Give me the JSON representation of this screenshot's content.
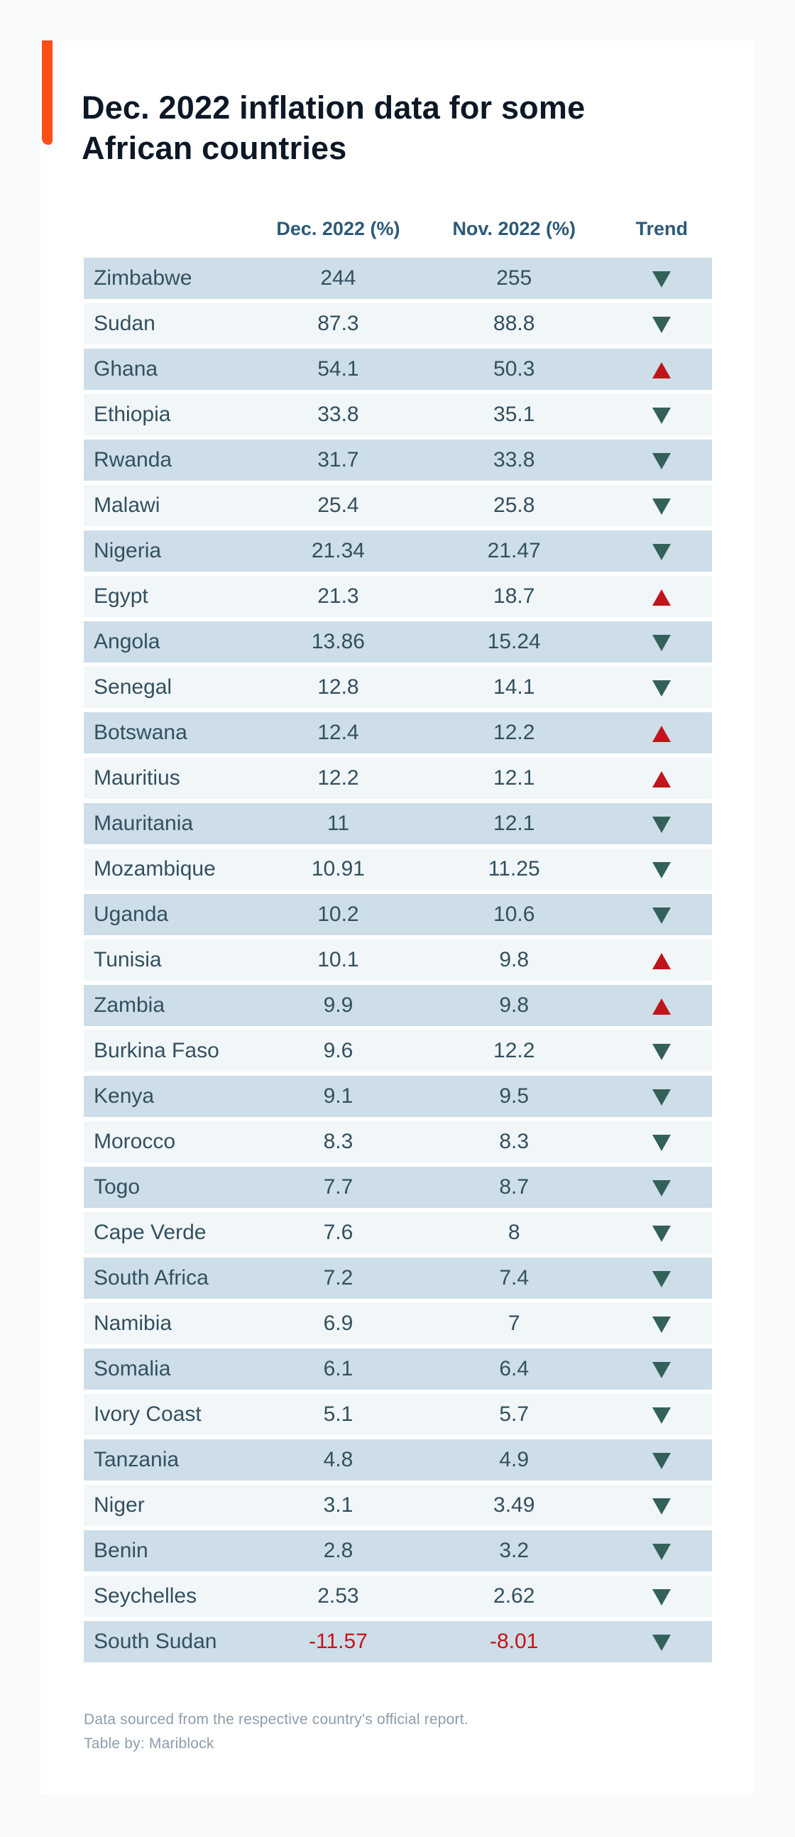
{
  "header": {
    "title_lines": [
      "Dec. 2022 inflation data for some",
      "African countries"
    ]
  },
  "chart_data": {
    "type": "table",
    "title": "Dec. 2022 inflation data for some African countries",
    "columns": [
      "",
      "Dec. 2022 (%)",
      "Nov. 2022 (%)",
      "Trend"
    ],
    "rows": [
      {
        "country": "Zimbabwe",
        "dec": "244",
        "nov": "255",
        "trend": "down"
      },
      {
        "country": "Sudan",
        "dec": "87.3",
        "nov": "88.8",
        "trend": "down"
      },
      {
        "country": "Ghana",
        "dec": "54.1",
        "nov": "50.3",
        "trend": "up"
      },
      {
        "country": "Ethiopia",
        "dec": "33.8",
        "nov": "35.1",
        "trend": "down"
      },
      {
        "country": "Rwanda",
        "dec": "31.7",
        "nov": "33.8",
        "trend": "down"
      },
      {
        "country": "Malawi",
        "dec": "25.4",
        "nov": "25.8",
        "trend": "down"
      },
      {
        "country": "Nigeria",
        "dec": "21.34",
        "nov": "21.47",
        "trend": "down"
      },
      {
        "country": "Egypt",
        "dec": "21.3",
        "nov": "18.7",
        "trend": "up"
      },
      {
        "country": "Angola",
        "dec": "13.86",
        "nov": "15.24",
        "trend": "down"
      },
      {
        "country": "Senegal",
        "dec": "12.8",
        "nov": "14.1",
        "trend": "down"
      },
      {
        "country": "Botswana",
        "dec": "12.4",
        "nov": "12.2",
        "trend": "up"
      },
      {
        "country": "Mauritius",
        "dec": "12.2",
        "nov": "12.1",
        "trend": "up"
      },
      {
        "country": "Mauritania",
        "dec": "11",
        "nov": "12.1",
        "trend": "down"
      },
      {
        "country": "Mozambique",
        "dec": "10.91",
        "nov": "11.25",
        "trend": "down"
      },
      {
        "country": "Uganda",
        "dec": "10.2",
        "nov": "10.6",
        "trend": "down"
      },
      {
        "country": "Tunisia",
        "dec": "10.1",
        "nov": "9.8",
        "trend": "up"
      },
      {
        "country": "Zambia",
        "dec": "9.9",
        "nov": "9.8",
        "trend": "up"
      },
      {
        "country": "Burkina Faso",
        "dec": "9.6",
        "nov": "12.2",
        "trend": "down"
      },
      {
        "country": "Kenya",
        "dec": "9.1",
        "nov": "9.5",
        "trend": "down"
      },
      {
        "country": "Morocco",
        "dec": "8.3",
        "nov": "8.3",
        "trend": "down"
      },
      {
        "country": "Togo",
        "dec": "7.7",
        "nov": "8.7",
        "trend": "down"
      },
      {
        "country": "Cape Verde",
        "dec": "7.6",
        "nov": "8",
        "trend": "down"
      },
      {
        "country": "South Africa",
        "dec": "7.2",
        "nov": "7.4",
        "trend": "down"
      },
      {
        "country": "Namibia",
        "dec": "6.9",
        "nov": "7",
        "trend": "down"
      },
      {
        "country": "Somalia",
        "dec": "6.1",
        "nov": "6.4",
        "trend": "down"
      },
      {
        "country": "Ivory Coast",
        "dec": "5.1",
        "nov": "5.7",
        "trend": "down"
      },
      {
        "country": "Tanzania",
        "dec": "4.8",
        "nov": "4.9",
        "trend": "down"
      },
      {
        "country": "Niger",
        "dec": "3.1",
        "nov": "3.49",
        "trend": "down"
      },
      {
        "country": "Benin",
        "dec": "2.8",
        "nov": "3.2",
        "trend": "down"
      },
      {
        "country": "Seychelles",
        "dec": "2.53",
        "nov": "2.62",
        "trend": "down"
      },
      {
        "country": "South Sudan",
        "dec": "-11.57",
        "nov": "-8.01",
        "trend": "down"
      }
    ],
    "legend_position": "none",
    "colors": {
      "accent_orange": "#fa4f17",
      "title_text": "#0c1826",
      "header_text": "#2d5977",
      "row_text": "#33505f",
      "row_dark": "#cddee8",
      "row_light": "#f1f6f9",
      "trend_down": "#33615a",
      "trend_up": "#c0151c",
      "negative_value": "#cb1117",
      "footer_text": "#8e9dab"
    }
  },
  "footer": {
    "line1": "Data sourced from the respective country's official report.",
    "line2": "Table by: Mariblock"
  }
}
